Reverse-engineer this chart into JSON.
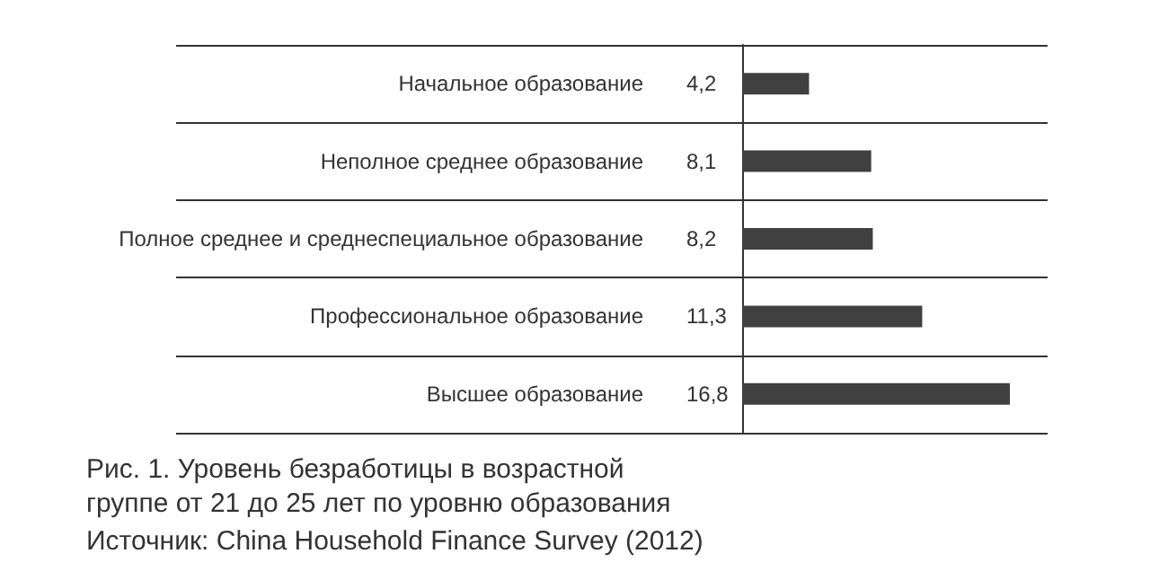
{
  "chart_data": {
    "type": "bar",
    "orientation": "horizontal",
    "title": "Рис. 1. Уровень безработицы в возрастной группе от 21 до 25 лет по уровню образования",
    "annotations": [
      "Источник: China Household Finance Survey (2012)"
    ],
    "categories": [
      "Начальное образование",
      "Неполное среднее образование",
      "Полное среднее и среднеспециальное образование",
      "Профессиональное образование",
      "Высшее образование"
    ],
    "series": [
      {
        "color": "#404040",
        "values": [
          4.2,
          8.1,
          8.2,
          11.3,
          16.8
        ],
        "value_labels": [
          "4,2",
          "8,1",
          "8,2",
          "11,3",
          "16,8"
        ]
      }
    ],
    "tick_labels": "y",
    "grid": "y"
  }
}
